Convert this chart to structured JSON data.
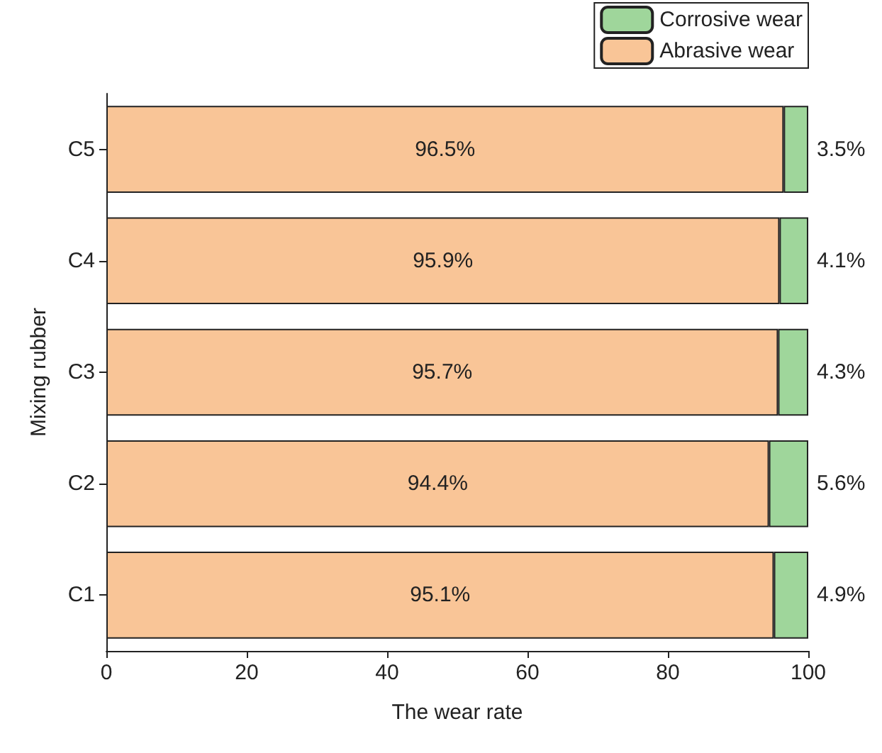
{
  "chart_data": {
    "type": "bar",
    "orientation": "horizontal",
    "stacked": true,
    "xlabel": "The wear rate",
    "ylabel": "Mixing rubber",
    "categories": [
      "C5",
      "C4",
      "C3",
      "C2",
      "C1"
    ],
    "series": [
      {
        "name": "Abrasive wear",
        "color": "#f9c597",
        "values": [
          96.5,
          95.9,
          95.7,
          94.4,
          95.1
        ],
        "value_labels": [
          "96.5%",
          "95.9%",
          "95.7%",
          "94.4%",
          "95.1%"
        ]
      },
      {
        "name": "Corrosive wear",
        "color": "#9fd69b",
        "values": [
          3.5,
          4.1,
          4.3,
          5.6,
          4.9
        ],
        "value_labels": [
          "3.5%",
          "4.1%",
          "4.3%",
          "5.6%",
          "4.9%"
        ]
      }
    ],
    "xlim": [
      0,
      100
    ],
    "xticks": [
      0,
      20,
      40,
      60,
      80,
      100
    ],
    "legend": "top right",
    "grid": false
  }
}
